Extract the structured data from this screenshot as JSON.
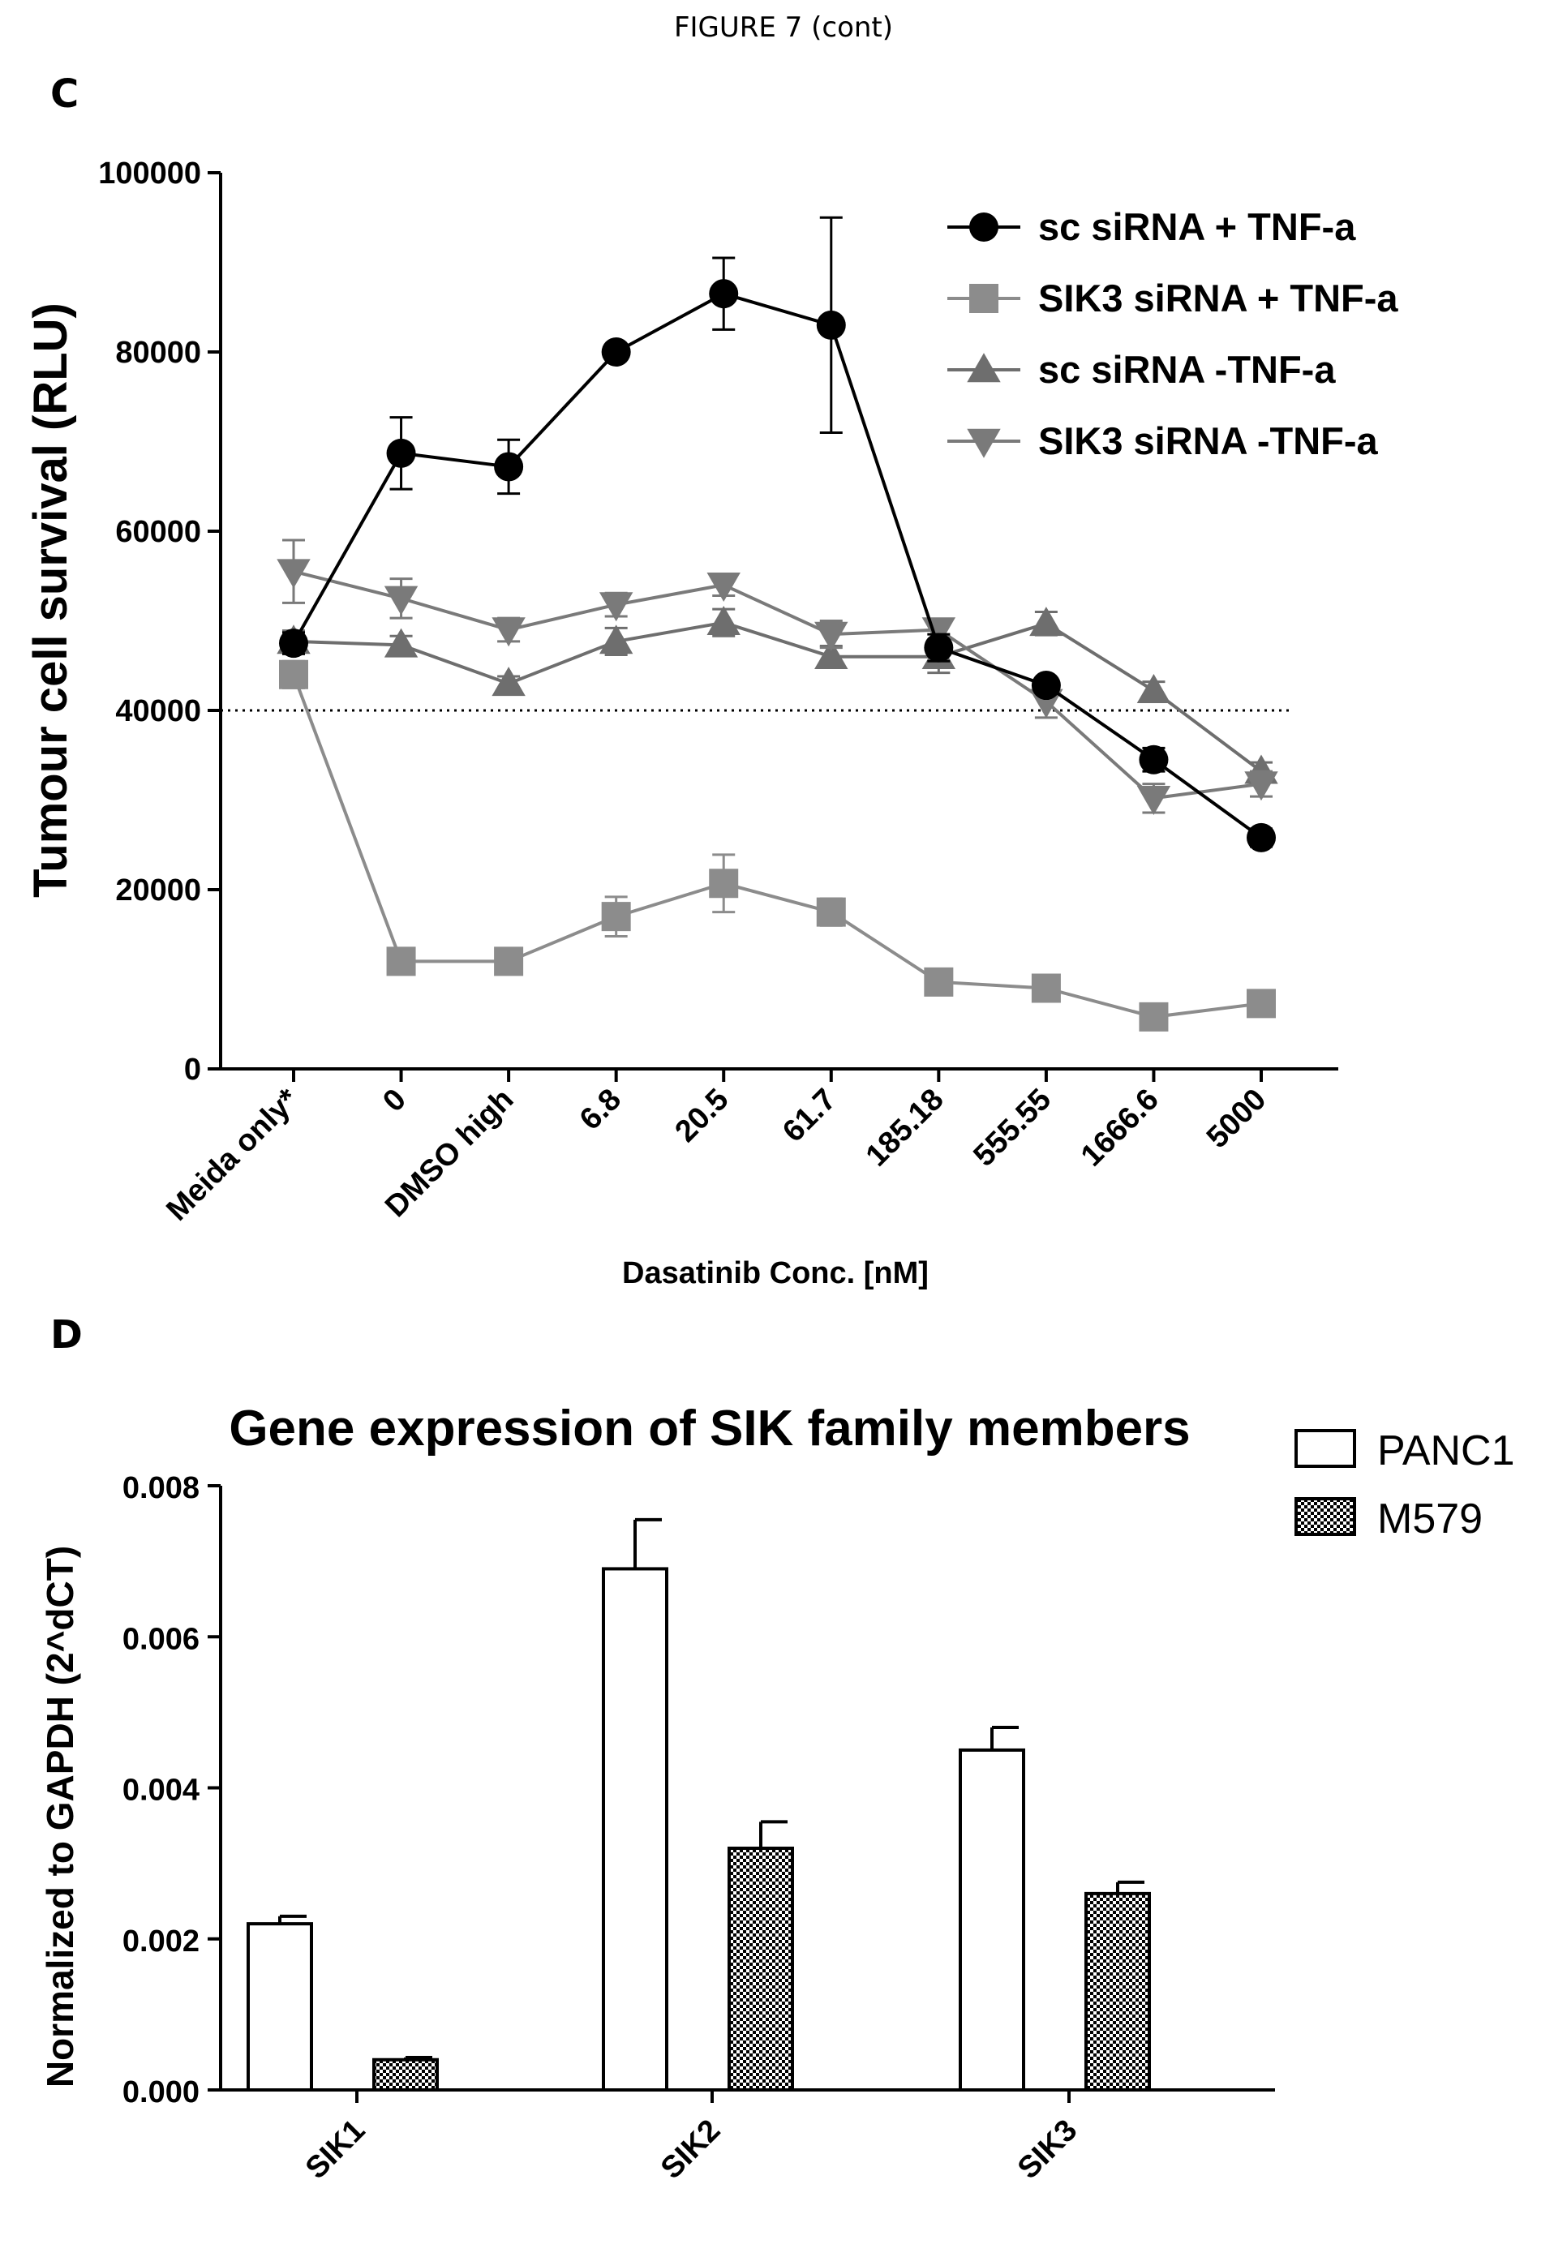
{
  "header": {
    "caption": "FIGURE 7 (cont)"
  },
  "panels": {
    "c": "C",
    "d": "D"
  },
  "chart_data": [
    {
      "type": "line",
      "title": "",
      "xlabel": "Dasatinib Conc. [nM]",
      "ylabel": "Tumour cell survival (RLU)",
      "categories": [
        "Meida only*",
        "0",
        "DMSO high",
        "6.8",
        "20.5",
        "61.7",
        "185.18",
        "555.55",
        "1666.6",
        "5000"
      ],
      "ylim": [
        0,
        100000
      ],
      "yticks": [
        0,
        20000,
        40000,
        60000,
        80000,
        100000
      ],
      "reference_line": {
        "y": 40000,
        "style": "dotted"
      },
      "legend_position": "top-right",
      "series": [
        {
          "name": "sc siRNA + TNF-a",
          "marker": "circle",
          "color": "#000000",
          "values": [
            47500,
            68700,
            67200,
            80000,
            86500,
            83000,
            47000,
            42800,
            34500,
            25800
          ],
          "errors": [
            1200,
            4000,
            3000,
            600,
            4000,
            12000,
            1500,
            800,
            1300,
            1000
          ]
        },
        {
          "name": "SIK3 siRNA + TNF-a",
          "marker": "square",
          "color": "#8c8c8c",
          "values": [
            44000,
            12000,
            12000,
            17000,
            20700,
            17500,
            9700,
            9000,
            5800,
            7300
          ],
          "errors": [
            1500,
            800,
            900,
            2200,
            3200,
            1500,
            700,
            700,
            700,
            800
          ]
        },
        {
          "name": "sc siRNA -TNF-a",
          "marker": "triangle-up",
          "color": "#6e6e6e",
          "values": [
            47700,
            47300,
            43000,
            47700,
            49800,
            46000,
            46000,
            49700,
            42200,
            33200
          ],
          "errors": [
            1200,
            1000,
            800,
            1500,
            1500,
            1200,
            1800,
            1300,
            1000,
            1000
          ]
        },
        {
          "name": "SIK3 siRNA -TNF-a",
          "marker": "triangle-down",
          "color": "#7a7a7a",
          "values": [
            55500,
            52500,
            49000,
            51800,
            54000,
            48500,
            49000,
            41000,
            30200,
            31800
          ],
          "errors": [
            3500,
            2200,
            1300,
            1300,
            1200,
            1500,
            1200,
            1800,
            1600,
            1400
          ]
        }
      ]
    },
    {
      "type": "bar",
      "title": "Gene expression of SIK family members",
      "xlabel": "",
      "ylabel": "Normalized to GAPDH (2^dCT)",
      "categories": [
        "SIK1",
        "SIK2",
        "SIK3"
      ],
      "ylim": [
        0,
        0.008
      ],
      "yticks": [
        "0.000",
        "0.002",
        "0.004",
        "0.006",
        "0.008"
      ],
      "legend_position": "top-right",
      "series": [
        {
          "name": "PANC1",
          "fill": "white",
          "values": [
            0.0022,
            0.0069,
            0.0045
          ],
          "errors": [
            0.0001,
            0.00065,
            0.0003
          ]
        },
        {
          "name": "M579",
          "fill": "checkered",
          "values": [
            0.0004,
            0.0032,
            0.0026
          ],
          "errors": [
            3e-05,
            0.00035,
            0.00015
          ]
        }
      ]
    }
  ]
}
